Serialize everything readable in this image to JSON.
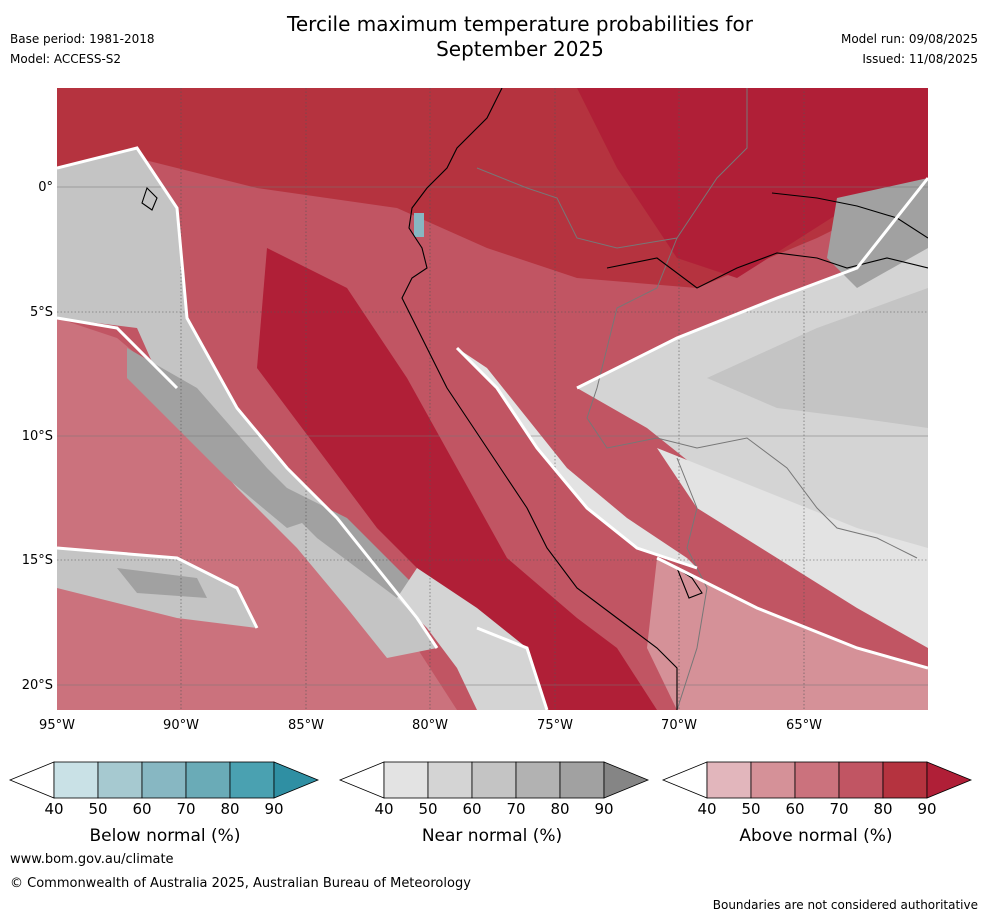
{
  "header": {
    "title_line1": "Tercile maximum temperature probabilities for",
    "title_line2": "September 2025",
    "base_period": "Base period: 1981-2018",
    "model": "Model: ACCESS-S2",
    "model_run": "Model run: 09/08/2025",
    "issued": "Issued: 11/08/2025"
  },
  "map": {
    "lat_labels": [
      "0°",
      "5°S",
      "10°S",
      "15°S",
      "20°S"
    ],
    "lon_labels": [
      "95°W",
      "90°W",
      "85°W",
      "80°W",
      "75°W",
      "70°W",
      "65°W"
    ],
    "fill_regions": [
      "above-normal 70-90% across the northern region and Ecuador / northern Peru",
      "near-normal band along the Peru coast and offshore SE Pacific",
      "near-normal over Brazil / Bolivia interior"
    ]
  },
  "colorbars": [
    {
      "label": "Below normal (%)",
      "ticks": [
        "40",
        "50",
        "60",
        "70",
        "80",
        "90"
      ],
      "colors": [
        "#ffffff",
        "#c9e1e6",
        "#a6c9d0",
        "#87b7c2",
        "#6aabb7",
        "#4aa1b1",
        "#2f8fa3"
      ]
    },
    {
      "label": "Near normal (%)",
      "ticks": [
        "40",
        "50",
        "60",
        "70",
        "80",
        "90"
      ],
      "colors": [
        "#ffffff",
        "#e3e3e3",
        "#d4d4d4",
        "#c4c4c4",
        "#b2b2b2",
        "#a1a1a1",
        "#858585"
      ]
    },
    {
      "label": "Above normal (%)",
      "ticks": [
        "40",
        "50",
        "60",
        "70",
        "80",
        "90"
      ],
      "colors": [
        "#ffffff",
        "#e2b6bc",
        "#d59198",
        "#cb727d",
        "#c15563",
        "#b5333f",
        "#b01f37"
      ]
    }
  ],
  "footer": {
    "website": "www.bom.gov.au/climate",
    "copyright": "© Commonwealth of Australia 2025, Australian Bureau of Meteorology",
    "disclaimer": "Boundaries are not considered authoritative"
  }
}
